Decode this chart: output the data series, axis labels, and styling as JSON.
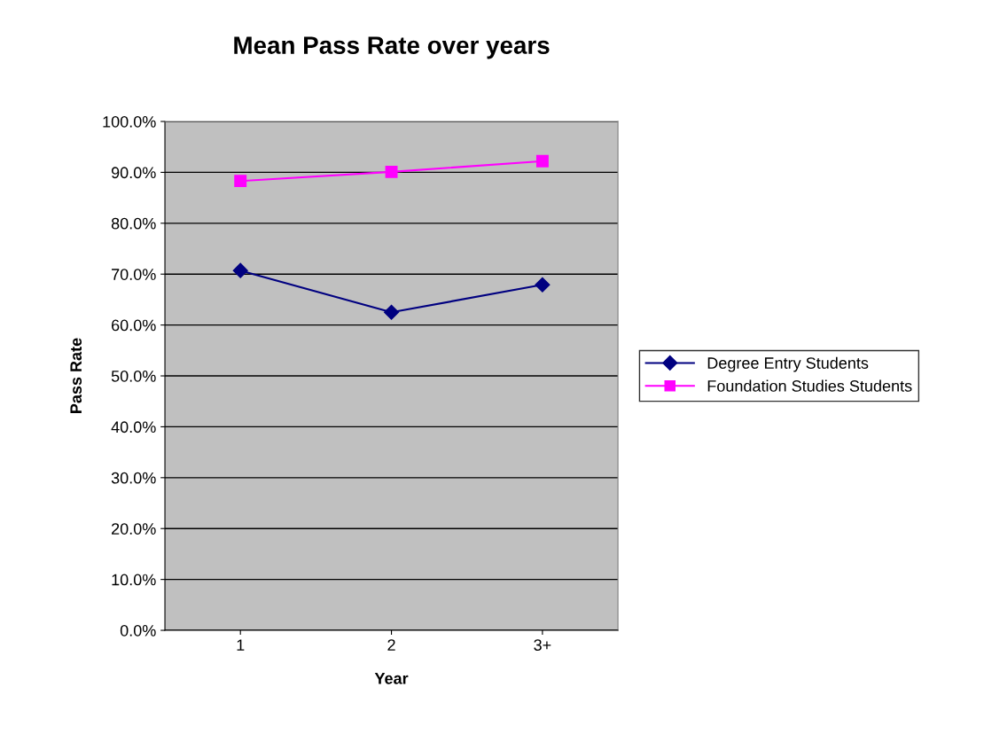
{
  "chart_data": {
    "type": "line",
    "title": "Mean Pass Rate over years",
    "xlabel": "Year",
    "ylabel": "Pass Rate",
    "categories": [
      "1",
      "2",
      "3+"
    ],
    "series": [
      {
        "name": "Degree Entry Students",
        "color": "#000080",
        "marker": "diamond",
        "values": [
          70.7,
          62.5,
          67.9
        ]
      },
      {
        "name": "Foundation Studies Students",
        "color": "#ff00ff",
        "marker": "square",
        "values": [
          88.3,
          90.1,
          92.2
        ]
      }
    ],
    "ylim": [
      0,
      100
    ],
    "yticks": [
      {
        "value": 0,
        "label": "0.0%"
      },
      {
        "value": 10,
        "label": "10.0%"
      },
      {
        "value": 20,
        "label": "20.0%"
      },
      {
        "value": 30,
        "label": "30.0%"
      },
      {
        "value": 40,
        "label": "40.0%"
      },
      {
        "value": 50,
        "label": "50.0%"
      },
      {
        "value": 60,
        "label": "60.0%"
      },
      {
        "value": 70,
        "label": "70.0%"
      },
      {
        "value": 80,
        "label": "80.0%"
      },
      {
        "value": 90,
        "label": "90.0%"
      },
      {
        "value": 100,
        "label": "100.0%"
      }
    ],
    "grid": "y",
    "legend": "right",
    "line_style": "solid"
  }
}
